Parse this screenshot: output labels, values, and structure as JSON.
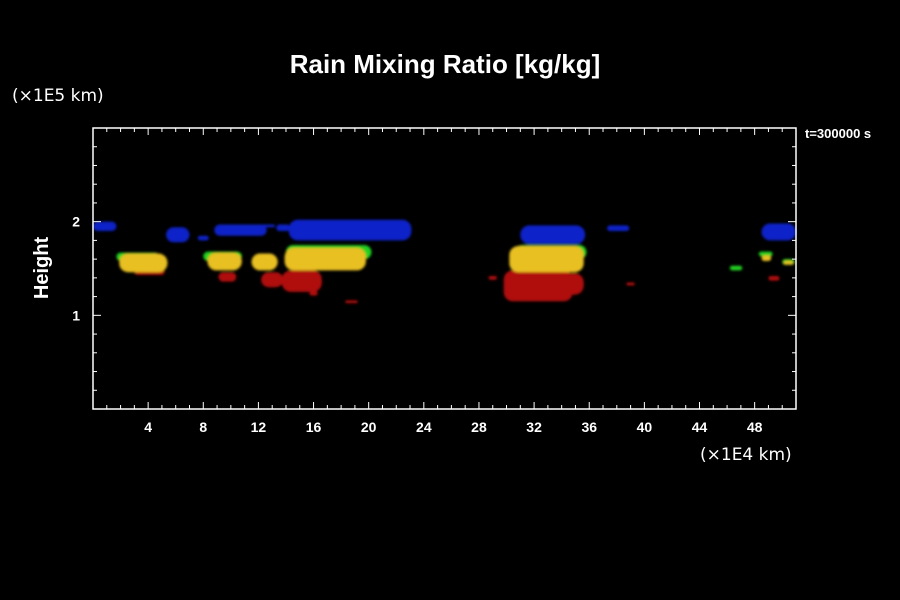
{
  "chart_data": {
    "type": "heatmap",
    "title": "Rain Mixing Ratio [kg/kg]",
    "ylabel": "Height",
    "y_scale_label": "(×1E5 km)",
    "x_scale_label": "(×1E4 km)",
    "time_label": "t=300000 s",
    "xlim": [
      0,
      51
    ],
    "ylim": [
      0,
      3
    ],
    "x_ticks": [
      "4",
      "8",
      "12",
      "16",
      "20",
      "24",
      "28",
      "32",
      "36",
      "40",
      "44",
      "48"
    ],
    "x_tick_values": [
      4,
      8,
      12,
      16,
      20,
      24,
      28,
      32,
      36,
      40,
      44,
      48
    ],
    "y_ticks": [
      "1",
      "2"
    ],
    "y_tick_values": [
      1,
      2
    ],
    "colors": {
      "background": "#000000",
      "frame": "#ffffff",
      "blue": "#1020c8",
      "green": "#20d020",
      "yellow": "#e8c020",
      "red": "#b01010"
    },
    "blobs": [
      {
        "color": "blue",
        "x": 0.0,
        "x2": 1.7,
        "y": 1.9,
        "y2": 2.0
      },
      {
        "color": "blue",
        "x": 5.3,
        "x2": 7.0,
        "y": 1.78,
        "y2": 1.94
      },
      {
        "color": "blue",
        "x": 7.6,
        "x2": 8.4,
        "y": 1.8,
        "y2": 1.85
      },
      {
        "color": "blue",
        "x": 8.8,
        "x2": 12.6,
        "y": 1.85,
        "y2": 1.97
      },
      {
        "color": "blue",
        "x": 12.2,
        "x2": 13.2,
        "y": 1.94,
        "y2": 1.97
      },
      {
        "color": "blue",
        "x": 13.3,
        "x2": 14.3,
        "y": 1.9,
        "y2": 1.97
      },
      {
        "color": "blue",
        "x": 14.2,
        "x2": 23.1,
        "y": 1.8,
        "y2": 2.02
      },
      {
        "color": "blue",
        "x": 31.0,
        "x2": 35.7,
        "y": 1.76,
        "y2": 1.96
      },
      {
        "color": "blue",
        "x": 37.3,
        "x2": 38.9,
        "y": 1.9,
        "y2": 1.96
      },
      {
        "color": "blue",
        "x": 48.5,
        "x2": 51.0,
        "y": 1.8,
        "y2": 1.98
      },
      {
        "color": "green",
        "x": 1.7,
        "x2": 4.8,
        "y": 1.58,
        "y2": 1.67
      },
      {
        "color": "green",
        "x": 8.0,
        "x2": 10.8,
        "y": 1.58,
        "y2": 1.68
      },
      {
        "color": "green",
        "x": 14.0,
        "x2": 20.2,
        "y": 1.6,
        "y2": 1.75
      },
      {
        "color": "green",
        "x": 30.6,
        "x2": 35.8,
        "y": 1.6,
        "y2": 1.75
      },
      {
        "color": "green",
        "x": 46.2,
        "x2": 47.1,
        "y": 1.48,
        "y2": 1.53
      },
      {
        "color": "green",
        "x": 48.3,
        "x2": 49.3,
        "y": 1.63,
        "y2": 1.68
      },
      {
        "color": "green",
        "x": 50.0,
        "x2": 50.9,
        "y": 1.54,
        "y2": 1.6
      },
      {
        "color": "red",
        "x": 3.0,
        "x2": 5.2,
        "y": 1.43,
        "y2": 1.5
      },
      {
        "color": "red",
        "x": 9.1,
        "x2": 10.4,
        "y": 1.36,
        "y2": 1.46
      },
      {
        "color": "red",
        "x": 12.2,
        "x2": 13.8,
        "y": 1.3,
        "y2": 1.46
      },
      {
        "color": "red",
        "x": 13.7,
        "x2": 16.6,
        "y": 1.25,
        "y2": 1.48
      },
      {
        "color": "red",
        "x": 15.7,
        "x2": 16.3,
        "y": 1.21,
        "y2": 1.26
      },
      {
        "color": "red",
        "x": 18.3,
        "x2": 19.2,
        "y": 1.13,
        "y2": 1.16
      },
      {
        "color": "red",
        "x": 28.7,
        "x2": 29.3,
        "y": 1.38,
        "y2": 1.42
      },
      {
        "color": "red",
        "x": 29.8,
        "x2": 34.8,
        "y": 1.15,
        "y2": 1.48
      },
      {
        "color": "red",
        "x": 34.2,
        "x2": 35.6,
        "y": 1.22,
        "y2": 1.45
      },
      {
        "color": "red",
        "x": 38.7,
        "x2": 39.3,
        "y": 1.32,
        "y2": 1.35
      },
      {
        "color": "red",
        "x": 49.0,
        "x2": 49.8,
        "y": 1.37,
        "y2": 1.42
      },
      {
        "color": "yellow",
        "x": 1.9,
        "x2": 5.4,
        "y": 1.46,
        "y2": 1.66
      },
      {
        "color": "yellow",
        "x": 8.3,
        "x2": 10.8,
        "y": 1.48,
        "y2": 1.67
      },
      {
        "color": "yellow",
        "x": 11.5,
        "x2": 13.4,
        "y": 1.48,
        "y2": 1.66
      },
      {
        "color": "yellow",
        "x": 13.9,
        "x2": 19.8,
        "y": 1.48,
        "y2": 1.72
      },
      {
        "color": "yellow",
        "x": 30.2,
        "x2": 35.6,
        "y": 1.46,
        "y2": 1.74
      },
      {
        "color": "yellow",
        "x": 48.5,
        "x2": 49.2,
        "y": 1.58,
        "y2": 1.64
      },
      {
        "color": "yellow",
        "x": 50.1,
        "x2": 50.8,
        "y": 1.54,
        "y2": 1.58
      }
    ]
  }
}
